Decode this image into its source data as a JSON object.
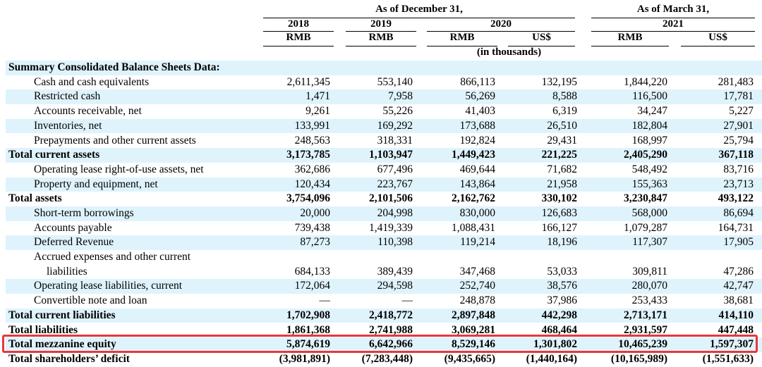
{
  "header": {
    "group_dec": "As of December 31,",
    "group_mar": "As of March 31,",
    "years": [
      "2018",
      "2019",
      "2020",
      "2021"
    ],
    "currencies": [
      "RMB",
      "RMB",
      "RMB",
      "US$",
      "RMB",
      "US$"
    ],
    "unit_note": "(in thousands)"
  },
  "section_title": "Summary Consolidated Balance Sheets Data:",
  "rows": [
    {
      "label": "Cash and cash equivalents",
      "values": [
        "2,611,345",
        "553,140",
        "866,113",
        "132,195",
        "1,844,220",
        "281,483"
      ]
    },
    {
      "label": "Restricted cash",
      "values": [
        "1,471",
        "7,958",
        "56,269",
        "8,588",
        "116,500",
        "17,781"
      ]
    },
    {
      "label": "Accounts receivable, net",
      "values": [
        "9,261",
        "55,226",
        "41,403",
        "6,319",
        "34,247",
        "5,227"
      ]
    },
    {
      "label": "Inventories, net",
      "values": [
        "133,991",
        "169,292",
        "173,688",
        "26,510",
        "182,804",
        "27,901"
      ]
    },
    {
      "label": "Prepayments and other current assets",
      "values": [
        "248,563",
        "318,331",
        "192,824",
        "29,431",
        "168,997",
        "25,794"
      ]
    },
    {
      "label": "Total current assets",
      "values": [
        "3,173,785",
        "1,103,947",
        "1,449,423",
        "221,225",
        "2,405,290",
        "367,118"
      ]
    },
    {
      "label": "Operating lease right-of-use assets, net",
      "values": [
        "362,686",
        "677,496",
        "469,644",
        "71,682",
        "548,492",
        "83,716"
      ]
    },
    {
      "label": "Property and equipment, net",
      "values": [
        "120,434",
        "223,767",
        "143,864",
        "21,958",
        "155,363",
        "23,713"
      ]
    },
    {
      "label": "Total assets",
      "values": [
        "3,754,096",
        "2,101,506",
        "2,162,762",
        "330,102",
        "3,230,847",
        "493,122"
      ]
    },
    {
      "label": "Short-term borrowings",
      "values": [
        "20,000",
        "204,998",
        "830,000",
        "126,683",
        "568,000",
        "86,694"
      ]
    },
    {
      "label": "Accounts payable",
      "values": [
        "739,438",
        "1,419,339",
        "1,088,431",
        "166,127",
        "1,079,287",
        "164,731"
      ]
    },
    {
      "label": "Deferred Revenue",
      "values": [
        "87,273",
        "110,398",
        "119,214",
        "18,196",
        "117,307",
        "17,905"
      ]
    },
    {
      "label": "Accrued expenses and other current",
      "label2": "liabilities",
      "values": [
        "684,133",
        "389,439",
        "347,468",
        "53,033",
        "309,811",
        "47,286"
      ]
    },
    {
      "label": "Operating lease liabilities, current",
      "values": [
        "172,064",
        "294,598",
        "252,740",
        "38,576",
        "280,070",
        "42,747"
      ]
    },
    {
      "label": "Convertible note and loan",
      "values": [
        "—",
        "—",
        "248,878",
        "37,986",
        "253,433",
        "38,681"
      ]
    },
    {
      "label": "Total current liabilities",
      "values": [
        "1,702,908",
        "2,418,772",
        "2,897,848",
        "442,298",
        "2,713,171",
        "414,110"
      ]
    },
    {
      "label": "Total liabilities",
      "values": [
        "1,861,368",
        "2,741,988",
        "3,069,281",
        "468,464",
        "2,931,597",
        "447,448"
      ]
    },
    {
      "label": "Total mezzanine equity",
      "values": [
        "5,874,619",
        "6,642,966",
        "8,529,146",
        "1,301,802",
        "10,465,239",
        "1,597,307"
      ]
    },
    {
      "label": "Total shareholders’ deficit",
      "values": [
        "(3,981,891)",
        "(7,283,448)",
        "(9,435,665)",
        "(1,440,164)",
        "(10,165,989)",
        "(1,551,633)"
      ]
    }
  ],
  "colors": {
    "shade": "#dff3fc",
    "highlight": "#e5383b"
  }
}
